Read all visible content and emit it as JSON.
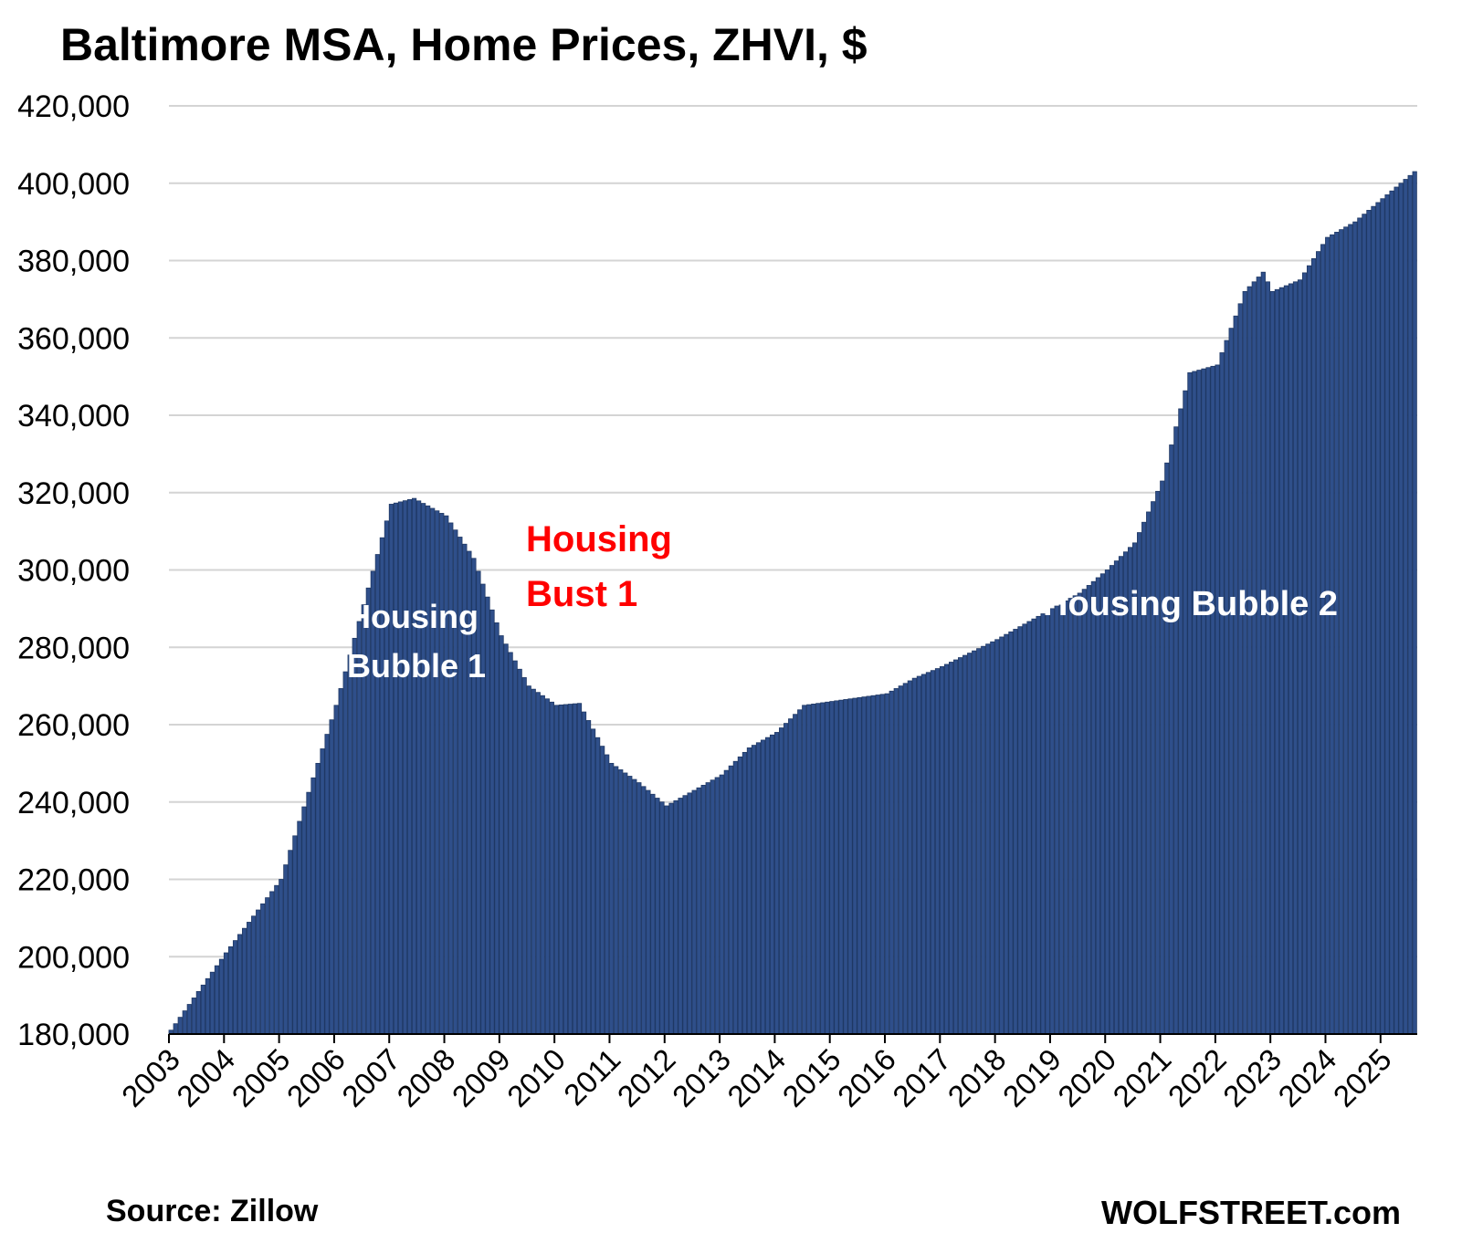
{
  "chart_data": {
    "type": "bar",
    "title": "Baltimore MSA, Home Prices, ZHVI, $",
    "xlabel": "",
    "ylabel": "",
    "ylim": [
      180000,
      420000
    ],
    "yticks": [
      180000,
      200000,
      220000,
      240000,
      260000,
      280000,
      300000,
      320000,
      340000,
      360000,
      380000,
      400000,
      420000
    ],
    "ytick_labels": [
      "180,000",
      "200,000",
      "220,000",
      "240,000",
      "260,000",
      "280,000",
      "300,000",
      "320,000",
      "340,000",
      "360,000",
      "380,000",
      "400,000",
      "420,000"
    ],
    "xtick_labels": [
      "2003",
      "2004",
      "2005",
      "2006",
      "2007",
      "2008",
      "2009",
      "2010",
      "2011",
      "2012",
      "2013",
      "2014",
      "2015",
      "2016",
      "2017",
      "2018",
      "2019",
      "2020",
      "2021",
      "2022",
      "2023",
      "2024",
      "2025"
    ],
    "grid": true,
    "legend": "none",
    "bar_color": "#2f4f8a",
    "bar_edge_color": "#1f3864",
    "frequency": "monthly, Jan 2003 - Aug 2025",
    "annotation_months": [
      "2003-01",
      "2004-01",
      "2005-01",
      "2006-01",
      "2007-01",
      "2007-06",
      "2008-01",
      "2008-07",
      "2009-01",
      "2009-07",
      "2010-01",
      "2010-06",
      "2011-01",
      "2011-07",
      "2012-01",
      "2012-07",
      "2013-01",
      "2013-07",
      "2014-01",
      "2014-07",
      "2015-01",
      "2016-01",
      "2016-07",
      "2017-01",
      "2018-01",
      "2019-01",
      "2019-07",
      "2020-01",
      "2020-07",
      "2021-01",
      "2021-07",
      "2022-01",
      "2022-07",
      "2022-11",
      "2023-01",
      "2023-07",
      "2024-01",
      "2024-07",
      "2025-01",
      "2025-08"
    ],
    "values": [
      181000,
      201000,
      220000,
      265000,
      317000,
      318500,
      314000,
      303000,
      283000,
      270000,
      265000,
      265500,
      250000,
      245000,
      239000,
      243000,
      247000,
      254000,
      258000,
      265000,
      266000,
      268000,
      272000,
      275000,
      282000,
      290000,
      294000,
      300000,
      307000,
      323000,
      351000,
      353000,
      372000,
      377000,
      372000,
      375000,
      386000,
      390000,
      396000,
      403000
    ],
    "annotations": [
      {
        "text_lines": [
          "Housing",
          "Bubble 1"
        ],
        "color": "#ffffff"
      },
      {
        "text_lines": [
          "Housing",
          "Bust 1"
        ],
        "color": "#ff0000"
      },
      {
        "text_lines": [
          "Housing Bubble 2"
        ],
        "color": "#ffffff"
      }
    ]
  },
  "footer": {
    "source": "Source: Zillow",
    "brand": "WOLFSTREET.com"
  }
}
